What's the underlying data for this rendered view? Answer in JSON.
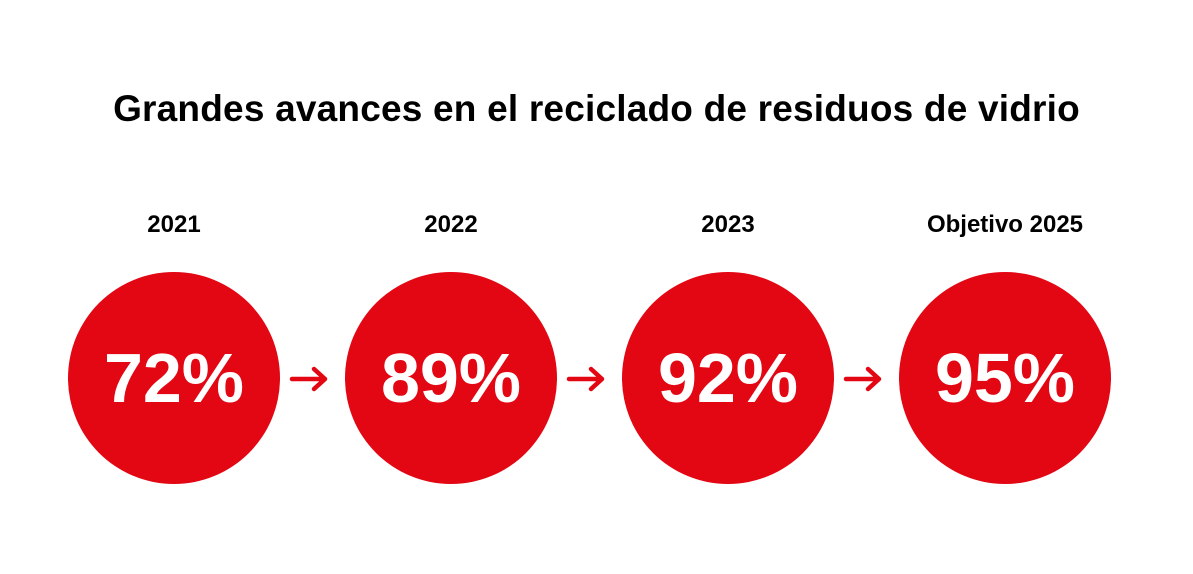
{
  "title": "Grandes avances en el reciclado de residuos de vidrio",
  "accent_color": "#e30613",
  "steps": [
    {
      "label": "2021",
      "value": "72%"
    },
    {
      "label": "2022",
      "value": "89%"
    },
    {
      "label": "2023",
      "value": "92%"
    },
    {
      "label": "Objetivo 2025",
      "value": "95%"
    }
  ],
  "connector_icon": "arrow-right-icon"
}
